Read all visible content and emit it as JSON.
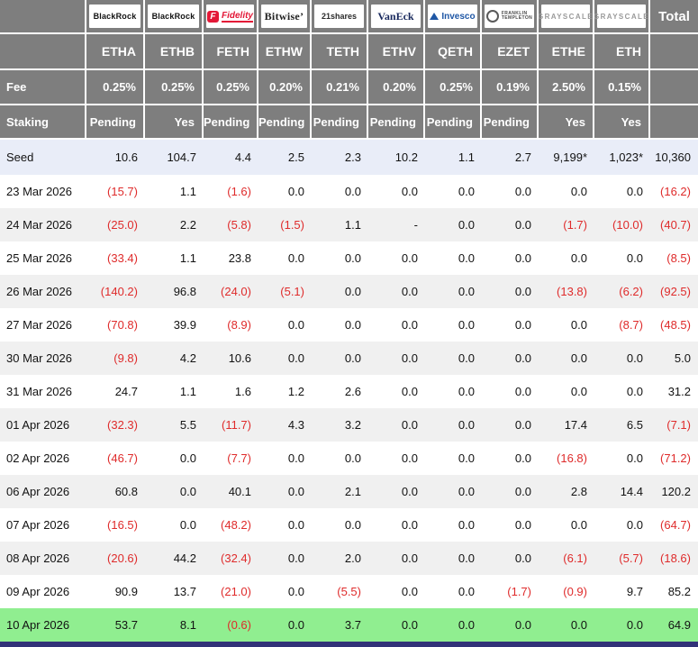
{
  "table": {
    "fee_label": "Fee",
    "staking_label": "Staking",
    "total_label": "Total",
    "columns": [
      {
        "logo": "blackrock-logo",
        "issuer": "BlackRock",
        "ticker": "ETHA",
        "fee": "0.25%",
        "staking": "Pending"
      },
      {
        "logo": "blackrock-logo",
        "issuer": "BlackRock",
        "ticker": "ETHB",
        "fee": "0.25%",
        "staking": "Yes"
      },
      {
        "logo": "fidelity-logo",
        "issuer": "Fidelity",
        "ticker": "FETH",
        "fee": "0.25%",
        "staking": "Pending"
      },
      {
        "logo": "bitwise-logo",
        "issuer": "Bitwise",
        "ticker": "ETHW",
        "fee": "0.20%",
        "staking": "Pending"
      },
      {
        "logo": "21shares-logo",
        "issuer": "21shares",
        "ticker": "TETH",
        "fee": "0.21%",
        "staking": "Pending"
      },
      {
        "logo": "vaneck-logo",
        "issuer": "VanEck",
        "ticker": "ETHV",
        "fee": "0.20%",
        "staking": "Pending"
      },
      {
        "logo": "invesco-logo",
        "issuer": "Invesco",
        "ticker": "QETH",
        "fee": "0.25%",
        "staking": "Pending"
      },
      {
        "logo": "franklin-templeton-logo",
        "issuer": "Franklin Templeton",
        "ticker": "EZET",
        "fee": "0.19%",
        "staking": "Pending"
      },
      {
        "logo": "grayscale-logo",
        "issuer": "Grayscale",
        "ticker": "ETHE",
        "fee": "2.50%",
        "staking": "Yes"
      },
      {
        "logo": "grayscale-logo",
        "issuer": "Grayscale",
        "ticker": "ETH",
        "fee": "0.15%",
        "staking": "Yes"
      }
    ],
    "rows": [
      {
        "label": "Seed",
        "highlight": "seed",
        "values": [
          "10.6",
          "104.7",
          "4.4",
          "2.5",
          "2.3",
          "10.2",
          "1.1",
          "2.7",
          "9,199*",
          "1,023*"
        ],
        "total": "10,360"
      },
      {
        "label": "23 Mar 2026",
        "values": [
          "(15.7)",
          "1.1",
          "(1.6)",
          "0.0",
          "0.0",
          "0.0",
          "0.0",
          "0.0",
          "0.0",
          "0.0"
        ],
        "total": "(16.2)"
      },
      {
        "label": "24 Mar 2026",
        "values": [
          "(25.0)",
          "2.2",
          "(5.8)",
          "(1.5)",
          "1.1",
          "-",
          "0.0",
          "0.0",
          "(1.7)",
          "(10.0)"
        ],
        "total": "(40.7)"
      },
      {
        "label": "25 Mar 2026",
        "values": [
          "(33.4)",
          "1.1",
          "23.8",
          "0.0",
          "0.0",
          "0.0",
          "0.0",
          "0.0",
          "0.0",
          "0.0"
        ],
        "total": "(8.5)"
      },
      {
        "label": "26 Mar 2026",
        "values": [
          "(140.2)",
          "96.8",
          "(24.0)",
          "(5.1)",
          "0.0",
          "0.0",
          "0.0",
          "0.0",
          "(13.8)",
          "(6.2)"
        ],
        "total": "(92.5)"
      },
      {
        "label": "27 Mar 2026",
        "values": [
          "(70.8)",
          "39.9",
          "(8.9)",
          "0.0",
          "0.0",
          "0.0",
          "0.0",
          "0.0",
          "0.0",
          "(8.7)"
        ],
        "total": "(48.5)"
      },
      {
        "label": "30 Mar 2026",
        "values": [
          "(9.8)",
          "4.2",
          "10.6",
          "0.0",
          "0.0",
          "0.0",
          "0.0",
          "0.0",
          "0.0",
          "0.0"
        ],
        "total": "5.0"
      },
      {
        "label": "31 Mar 2026",
        "values": [
          "24.7",
          "1.1",
          "1.6",
          "1.2",
          "2.6",
          "0.0",
          "0.0",
          "0.0",
          "0.0",
          "0.0"
        ],
        "total": "31.2"
      },
      {
        "label": "01 Apr 2026",
        "values": [
          "(32.3)",
          "5.5",
          "(11.7)",
          "4.3",
          "3.2",
          "0.0",
          "0.0",
          "0.0",
          "17.4",
          "6.5"
        ],
        "total": "(7.1)"
      },
      {
        "label": "02 Apr 2026",
        "values": [
          "(46.7)",
          "0.0",
          "(7.7)",
          "0.0",
          "0.0",
          "0.0",
          "0.0",
          "0.0",
          "(16.8)",
          "0.0"
        ],
        "total": "(71.2)"
      },
      {
        "label": "06 Apr 2026",
        "values": [
          "60.8",
          "0.0",
          "40.1",
          "0.0",
          "2.1",
          "0.0",
          "0.0",
          "0.0",
          "2.8",
          "14.4"
        ],
        "total": "120.2"
      },
      {
        "label": "07 Apr 2026",
        "values": [
          "(16.5)",
          "0.0",
          "(48.2)",
          "0.0",
          "0.0",
          "0.0",
          "0.0",
          "0.0",
          "0.0",
          "0.0"
        ],
        "total": "(64.7)"
      },
      {
        "label": "08 Apr 2026",
        "values": [
          "(20.6)",
          "44.2",
          "(32.4)",
          "0.0",
          "2.0",
          "0.0",
          "0.0",
          "0.0",
          "(6.1)",
          "(5.7)"
        ],
        "total": "(18.6)"
      },
      {
        "label": "09 Apr 2026",
        "values": [
          "90.9",
          "13.7",
          "(21.0)",
          "0.0",
          "(5.5)",
          "0.0",
          "0.0",
          "(1.7)",
          "(0.9)",
          "9.7"
        ],
        "total": "85.2"
      },
      {
        "label": "10 Apr 2026",
        "highlight": "latest",
        "values": [
          "53.7",
          "8.1",
          "(0.6)",
          "0.0",
          "3.7",
          "0.0",
          "0.0",
          "0.0",
          "0.0",
          "0.0"
        ],
        "total": "64.9"
      }
    ]
  },
  "colors": {
    "header_gray": "#7e7e7e",
    "negative_red": "#df2b2b",
    "seed_row_bg": "#e9edf8",
    "stripe_bg": "#f0f0f0",
    "latest_row_green": "#90ee90",
    "bottom_bar_navy": "#323278",
    "fidelity_red": "#e31837",
    "invesco_blue": "#1f57a5",
    "vaneck_navy": "#17275c",
    "grayscale_gray": "#9a9a9a"
  }
}
